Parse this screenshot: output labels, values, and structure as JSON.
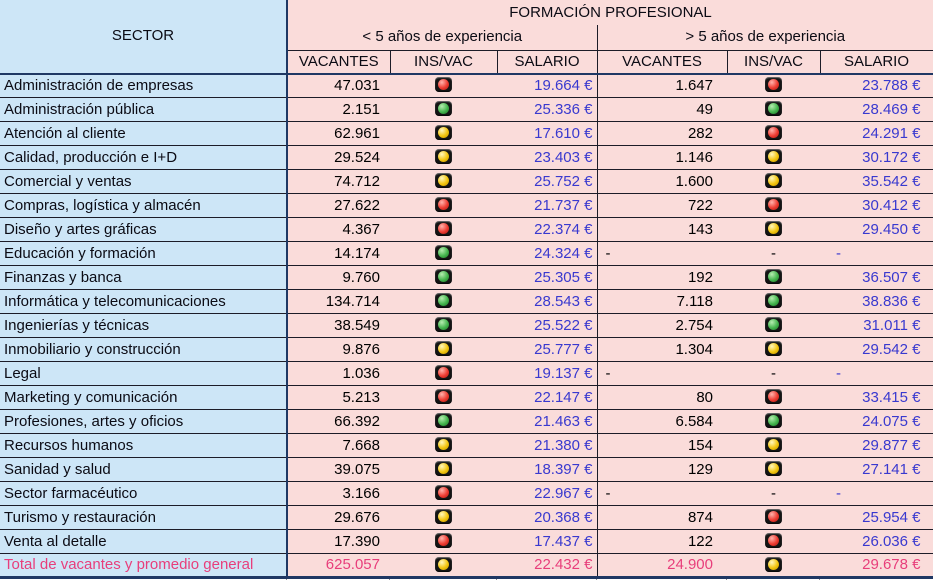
{
  "table": {
    "sector_header": "SECTOR",
    "title": "FORMACIÓN PROFESIONAL",
    "group_lt5": "< 5 años de experiencia",
    "group_gt5": "> 5 años de experiencia",
    "col_headers": [
      "VACANTES",
      "INS/VAC",
      "SALARIO"
    ],
    "rows": [
      {
        "sector": "Administración de empresas",
        "v1": "47.031",
        "l1": "red",
        "s1": "19.664 €",
        "v2": "1.647",
        "l2": "red",
        "s2": "23.788 €"
      },
      {
        "sector": "Administración pública",
        "v1": "2.151",
        "l1": "green",
        "s1": "25.336 €",
        "v2": "49",
        "l2": "green",
        "s2": "28.469 €"
      },
      {
        "sector": "Atención al cliente",
        "v1": "62.961",
        "l1": "yellow",
        "s1": "17.610 €",
        "v2": "282",
        "l2": "red",
        "s2": "24.291 €"
      },
      {
        "sector": "Calidad, producción e I+D",
        "v1": "29.524",
        "l1": "yellow",
        "s1": "23.403 €",
        "v2": "1.146",
        "l2": "yellow",
        "s2": "30.172 €"
      },
      {
        "sector": "Comercial y ventas",
        "v1": "74.712",
        "l1": "yellow",
        "s1": "25.752 €",
        "v2": "1.600",
        "l2": "yellow",
        "s2": "35.542 €"
      },
      {
        "sector": "Compras, logística y almacén",
        "v1": "27.622",
        "l1": "red",
        "s1": "21.737 €",
        "v2": "722",
        "l2": "red",
        "s2": "30.412 €"
      },
      {
        "sector": "Diseño y artes gráficas",
        "v1": "4.367",
        "l1": "red",
        "s1": "22.374 €",
        "v2": "143",
        "l2": "yellow",
        "s2": "29.450 €"
      },
      {
        "sector": "Educación y formación",
        "v1": "14.174",
        "l1": "green",
        "s1": "24.324 €",
        "v2": "-",
        "l2": "dash",
        "s2": "-"
      },
      {
        "sector": "Finanzas y banca",
        "v1": "9.760",
        "l1": "green",
        "s1": "25.305 €",
        "v2": "192",
        "l2": "green",
        "s2": "36.507 €"
      },
      {
        "sector": "Informática y telecomunicaciones",
        "v1": "134.714",
        "l1": "green",
        "s1": "28.543 €",
        "v2": "7.118",
        "l2": "green",
        "s2": "38.836 €"
      },
      {
        "sector": "Ingenierías y técnicas",
        "v1": "38.549",
        "l1": "green",
        "s1": "25.522 €",
        "v2": "2.754",
        "l2": "green",
        "s2": "31.011 €"
      },
      {
        "sector": "Inmobiliario y construcción",
        "v1": "9.876",
        "l1": "yellow",
        "s1": "25.777 €",
        "v2": "1.304",
        "l2": "yellow",
        "s2": "29.542 €"
      },
      {
        "sector": "Legal",
        "v1": "1.036",
        "l1": "red",
        "s1": "19.137 €",
        "v2": "-",
        "l2": "dash",
        "s2": "-"
      },
      {
        "sector": "Marketing y comunicación",
        "v1": "5.213",
        "l1": "red",
        "s1": "22.147 €",
        "v2": "80",
        "l2": "red",
        "s2": "33.415 €"
      },
      {
        "sector": "Profesiones, artes y oficios",
        "v1": "66.392",
        "l1": "green",
        "s1": "21.463 €",
        "v2": "6.584",
        "l2": "green",
        "s2": "24.075 €"
      },
      {
        "sector": "Recursos humanos",
        "v1": "7.668",
        "l1": "yellow",
        "s1": "21.380 €",
        "v2": "154",
        "l2": "yellow",
        "s2": "29.877 €"
      },
      {
        "sector": "Sanidad y salud",
        "v1": "39.075",
        "l1": "yellow",
        "s1": "18.397 €",
        "v2": "129",
        "l2": "yellow",
        "s2": "27.141 €"
      },
      {
        "sector": "Sector farmacéutico",
        "v1": "3.166",
        "l1": "red",
        "s1": "22.967 €",
        "v2": "-",
        "l2": "dash",
        "s2": "-"
      },
      {
        "sector": "Turismo y restauración",
        "v1": "29.676",
        "l1": "yellow",
        "s1": "20.368 €",
        "v2": "874",
        "l2": "red",
        "s2": "25.954 €"
      },
      {
        "sector": "Venta al detalle",
        "v1": "17.390",
        "l1": "red",
        "s1": "17.437 €",
        "v2": "122",
        "l2": "red",
        "s2": "26.036 €"
      }
    ],
    "total_row": {
      "sector": "Total de vacantes y promedio general",
      "v1": "625.057",
      "l1": "yellow",
      "s1": "22.432 €",
      "v2": "24.900",
      "l2": "yellow",
      "s2": "29.678 €"
    }
  },
  "icons": {
    "red": "traffic-light-red-icon",
    "yellow": "traffic-light-yellow-icon",
    "green": "traffic-light-green-icon"
  },
  "colors": {
    "sector_bg": "#cde6f7",
    "data_bg": "#fadcda",
    "salary_text": "#3939cf",
    "total_text": "#e83e7b",
    "grid_line": "#1c1c28",
    "outer_border": "#1f3864",
    "light_red": "#ee3b31",
    "light_yellow": "#f3c50e",
    "light_green": "#44b54d"
  }
}
